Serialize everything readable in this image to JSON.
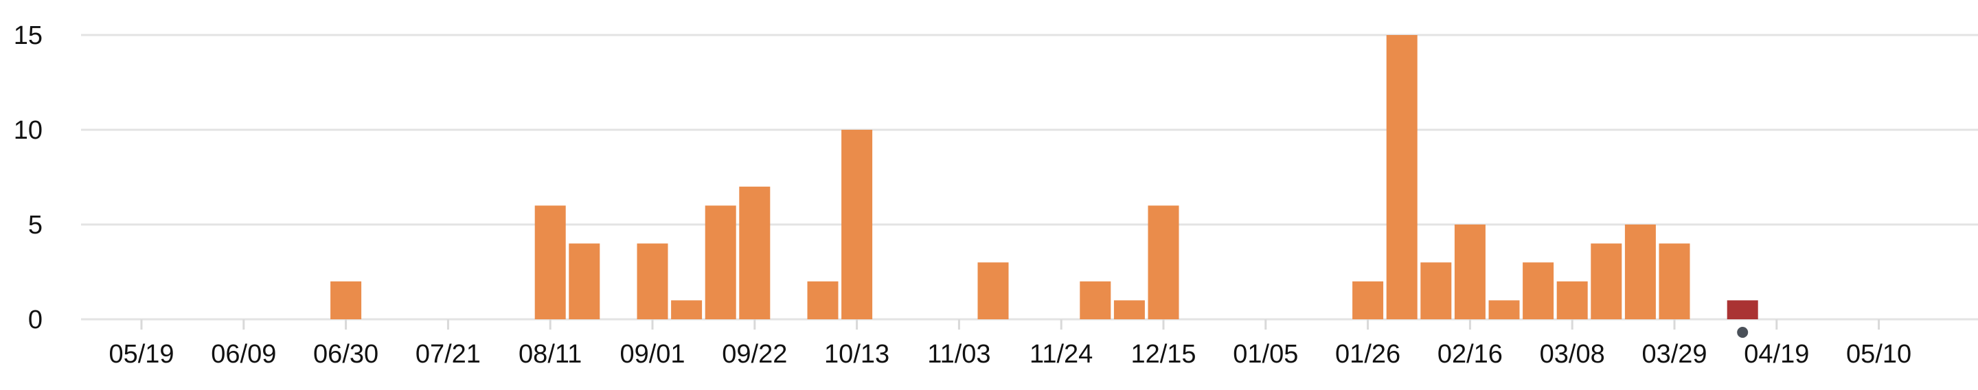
{
  "chart_data": {
    "type": "bar",
    "title": "",
    "xlabel": "",
    "ylabel": "",
    "ylim": [
      0,
      16
    ],
    "grid": true,
    "yticks": [
      0,
      5,
      10,
      15
    ],
    "xtick_labels": [
      "05/19",
      "06/09",
      "06/30",
      "07/21",
      "08/11",
      "09/01",
      "09/22",
      "10/13",
      "11/03",
      "11/24",
      "12/15",
      "01/05",
      "01/26",
      "02/16",
      "03/08",
      "03/29",
      "04/19",
      "05/10"
    ],
    "bars": [
      {
        "week_index": 6,
        "value": 2
      },
      {
        "week_index": 12,
        "value": 6
      },
      {
        "week_index": 13,
        "value": 4
      },
      {
        "week_index": 15,
        "value": 4
      },
      {
        "week_index": 16,
        "value": 1
      },
      {
        "week_index": 17,
        "value": 6
      },
      {
        "week_index": 18,
        "value": 7
      },
      {
        "week_index": 20,
        "value": 2
      },
      {
        "week_index": 21,
        "value": 10
      },
      {
        "week_index": 25,
        "value": 3
      },
      {
        "week_index": 28,
        "value": 2
      },
      {
        "week_index": 29,
        "value": 1
      },
      {
        "week_index": 30,
        "value": 6
      },
      {
        "week_index": 36,
        "value": 2
      },
      {
        "week_index": 37,
        "value": 15
      },
      {
        "week_index": 38,
        "value": 3
      },
      {
        "week_index": 39,
        "value": 5
      },
      {
        "week_index": 40,
        "value": 1
      },
      {
        "week_index": 41,
        "value": 3
      },
      {
        "week_index": 42,
        "value": 2
      },
      {
        "week_index": 43,
        "value": 4
      },
      {
        "week_index": 44,
        "value": 5
      },
      {
        "week_index": 45,
        "value": 4
      },
      {
        "week_index": 47,
        "value": 1,
        "highlight": true
      }
    ],
    "current_marker_week_index": 47,
    "colors": {
      "bar": "#ea8c4b",
      "highlight_bar": "#aa3333",
      "marker": "#4a5059",
      "grid": "#e3e3e3"
    }
  }
}
